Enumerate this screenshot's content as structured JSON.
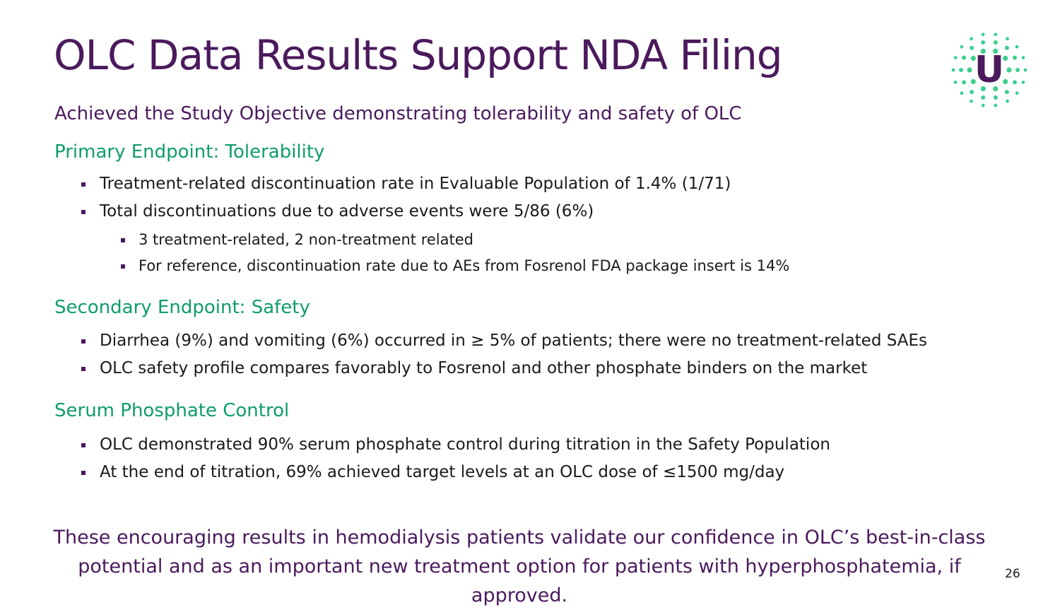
{
  "slide": {
    "title": "OLC Data Results Support NDA Filing",
    "subtitle": "Achieved the Study Objective demonstrating tolerability and safety of OLC",
    "page_number": "26",
    "conclusion_line1": "These encouraging results in hemodialysis patients validate our confidence in OLC’s best-in-class",
    "conclusion_line2": "potential and as an important new treatment option for patients with hyperphosphatemia, if approved."
  },
  "sections": [
    {
      "heading": "Primary Endpoint: Tolerability",
      "bullets": [
        "Treatment-related discontinuation rate in Evaluable Population of 1.4% (1/71)",
        "Total discontinuations due to adverse events were 5/86 (6%)"
      ],
      "sub_bullets": [
        "3 treatment-related,  2 non-treatment related",
        "For reference, discontinuation rate due to AEs from Fosrenol FDA package insert is 14%"
      ]
    },
    {
      "heading": "Secondary Endpoint: Safety",
      "bullets": [
        "Diarrhea (9%) and vomiting (6%) occurred in ≥ 5% of patients; there were no treatment-related SAEs",
        "OLC safety profile compares favorably to Fosrenol and other phosphate binders on the market"
      ]
    },
    {
      "heading": "Serum Phosphate Control",
      "bullets": [
        "OLC demonstrated 90% serum phosphate control during titration in the Safety Population",
        "At the end of titration, 69% achieved target levels at an OLC dose of ≤1500 mg/day"
      ]
    }
  ],
  "logo": {
    "icon": "u-dots-logo",
    "letter": "U"
  },
  "colors": {
    "title": "#4a1a5c",
    "heading": "#0f9d6b",
    "logo_dots": "#3ecf8e"
  }
}
